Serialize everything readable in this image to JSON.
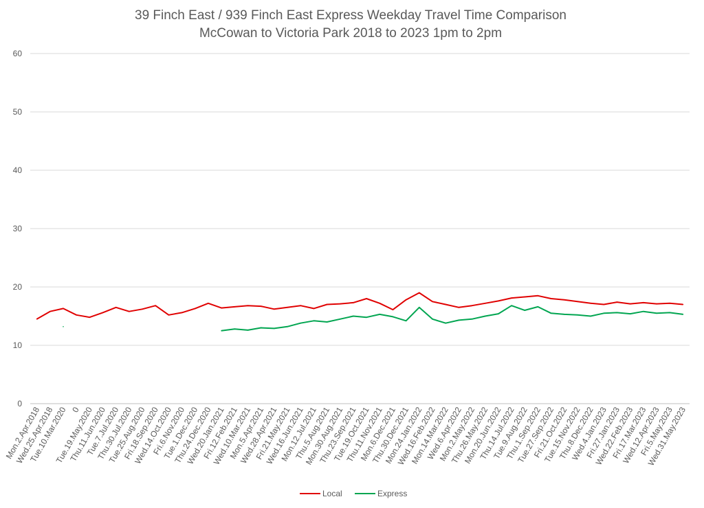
{
  "chart_data": {
    "type": "line",
    "title": "39 Finch East / 939 Finch East Express Weekday Travel Time Comparison",
    "subtitle": "McCowan to Victoria Park 2018 to 2023 1pm to 2pm",
    "xlabel": "",
    "ylabel": "",
    "ylim": [
      0,
      60
    ],
    "yticks": [
      "0",
      "10",
      "20",
      "30",
      "40",
      "50",
      "60"
    ],
    "grid": true,
    "legend_position": "bottom",
    "categories": [
      "Mon.2.Apr.2018",
      "Wed.25.Apr.2018",
      "Tue.10.Mar.2020",
      "0",
      "Tue.19.May.2020",
      "Thu.11.Jun.2020",
      "Tue.7.Jul.2020",
      "Thu.30.Jul.2020",
      "Tue.25.Aug.2020",
      "Fri.18.Sep.2020",
      "Wed.14.Oct.2020",
      "Fri.6.Nov.2020",
      "Tue.1.Dec.2020",
      "Thu.24.Dec.2020",
      "Wed.20.Jan.2021",
      "Fri.12.Feb.2021",
      "Wed.10.Mar.2021",
      "Mon.5.Apr.2021",
      "Wed.28.Apr.2021",
      "Fri.21.May.2021",
      "Wed.16.Jun.2021",
      "Mon.12.Jul.2021",
      "Thu.5.Aug.2021",
      "Mon.30.Aug.2021",
      "Thu.23.Sep.2021",
      "Tue.19.Oct.2021",
      "Thu.11.Nov.2021",
      "Mon.6.Dec.2021",
      "Thu.30.Dec.2021",
      "Mon.24.Jan.2022",
      "Wed.16.Feb.2022",
      "Mon.14.Mar.2022",
      "Wed.6.Apr.2022",
      "Mon.2.May.2022",
      "Thu.26.May.2022",
      "Mon.20.Jun.2022",
      "Thu.14.Jul.2022",
      "Tue.9.Aug.2022",
      "Thu.1.Sep.2022",
      "Tue.27.Sep.2022",
      "Fri.21.Oct.2022",
      "Tue.15.Nov.2022",
      "Thu.8.Dec.2022",
      "Wed.4.Jan.2023",
      "Fri.27.Jan.2023",
      "Wed.22.Feb.2023",
      "Fri.17.Mar.2023",
      "Wed.12.Apr.2023",
      "Fri.5.May.2023",
      "Wed.31.May.2023"
    ],
    "series": [
      {
        "name": "Local",
        "color": "#e00000",
        "values": [
          14.5,
          15.8,
          16.3,
          15.2,
          14.8,
          15.6,
          16.5,
          15.8,
          16.2,
          16.8,
          15.2,
          15.6,
          16.3,
          17.2,
          16.4,
          16.6,
          16.8,
          16.7,
          16.2,
          16.5,
          16.8,
          16.3,
          17.0,
          17.1,
          17.3,
          18.0,
          17.2,
          16.1,
          17.8,
          19.0,
          17.5,
          17.0,
          16.5,
          16.8,
          17.2,
          17.6,
          18.1,
          18.3,
          18.5,
          18.0,
          17.8,
          17.5,
          17.2,
          17.0,
          17.4,
          17.1,
          17.3,
          17.1,
          17.2,
          17.0
        ]
      },
      {
        "name": "Express",
        "color": "#00a550",
        "values": [
          null,
          null,
          13.2,
          null,
          null,
          null,
          null,
          null,
          null,
          null,
          null,
          null,
          null,
          null,
          12.5,
          12.8,
          12.6,
          13.0,
          12.9,
          13.2,
          13.8,
          14.2,
          14.0,
          14.5,
          15.0,
          14.8,
          15.3,
          14.9,
          14.2,
          16.5,
          14.5,
          13.8,
          14.3,
          14.5,
          15.0,
          15.4,
          16.8,
          16.0,
          16.6,
          15.5,
          15.3,
          15.2,
          15.0,
          15.5,
          15.6,
          15.4,
          15.8,
          15.5,
          15.6,
          15.3
        ]
      }
    ]
  }
}
